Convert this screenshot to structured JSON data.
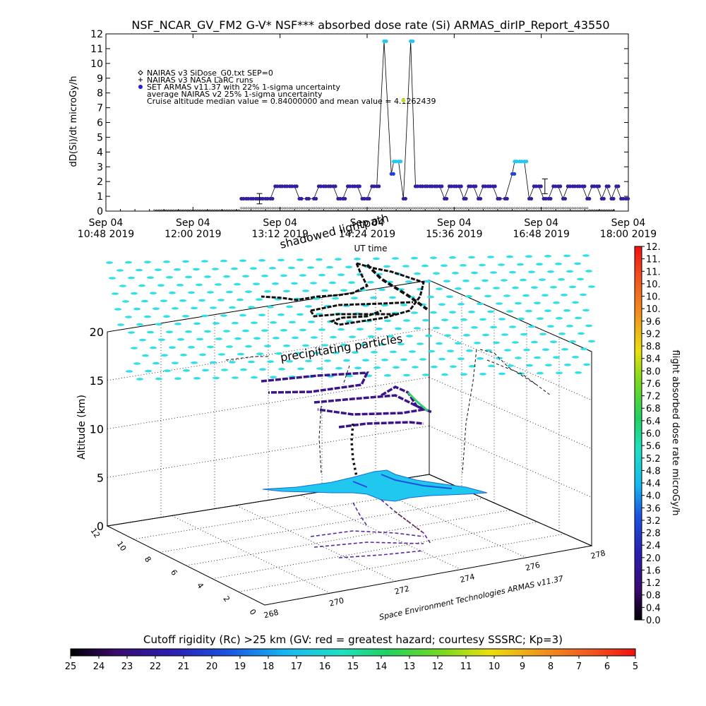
{
  "title": "NSF_NCAR_GV_FM2 G-V* NSF*** absorbed dose rate (Si) ARMAS_dirIP_Report_43550",
  "legend": {
    "items": [
      {
        "marker": "diamond",
        "text": "NAIRAS v3 SiDose_G0.txt SEP=0"
      },
      {
        "marker": "plus",
        "text": "NAIRAS v3 NASA LaRC runs"
      },
      {
        "marker": "dot",
        "color": "#2020d0",
        "text": "SET ARMAS v11.37 with 22% 1-sigma uncertainty"
      },
      {
        "marker": "none",
        "text": "average NAIRAS v2 25% 1-sigma uncertainty"
      },
      {
        "marker": "none",
        "text": "Cruise altitude median value = 0.84000000 and mean value = 4.1262439"
      }
    ]
  },
  "chart_data": [
    {
      "type": "scatter",
      "ylabel": "dD(Si)/dt microGy/h",
      "xlabel": "UT time",
      "ylim": [
        0,
        12
      ],
      "yticks": [
        "0",
        "1",
        "2",
        "3",
        "4",
        "5",
        "6",
        "7",
        "8",
        "9",
        "10",
        "11",
        "12"
      ],
      "xtick_labels": [
        {
          "line1": "Sep 04",
          "line2": "10:48 2019"
        },
        {
          "line1": "Sep 04",
          "line2": "12:00 2019"
        },
        {
          "line1": "Sep 04",
          "line2": "13:12 2019"
        },
        {
          "line1": "Sep 04",
          "line2": "14:24 2019"
        },
        {
          "line1": "Sep 04",
          "line2": "15:36 2019"
        },
        {
          "line1": "Sep 04",
          "line2": "16:48 2019"
        },
        {
          "line1": "Sep 04",
          "line2": "18:00 2019"
        }
      ],
      "xlim_minutes_from_first_tick": [
        0,
        432
      ],
      "series": [
        {
          "name": "SET ARMAS v11.37 with 22% 1-sigma uncertainty",
          "color": "#3020a0",
          "points": [
            [
              112,
              0.84
            ],
            [
              116,
              0.84
            ],
            [
              120,
              0.84
            ],
            [
              124,
              0.84
            ],
            [
              128,
              0.84
            ],
            [
              132,
              0.84
            ],
            [
              136,
              0.84
            ],
            [
              140,
              1.68
            ],
            [
              144,
              1.68
            ],
            [
              148,
              1.68
            ],
            [
              152,
              1.68
            ],
            [
              156,
              1.68
            ],
            [
              160,
              0.84
            ],
            [
              166,
              0.84
            ],
            [
              172,
              0.84
            ],
            [
              176,
              1.68
            ],
            [
              180,
              1.68
            ],
            [
              184,
              1.68
            ],
            [
              188,
              1.68
            ],
            [
              192,
              0.84
            ],
            [
              196,
              0.84
            ],
            [
              200,
              1.68
            ],
            [
              204,
              1.68
            ],
            [
              208,
              1.68
            ],
            [
              212,
              0.84
            ],
            [
              216,
              0.84
            ],
            [
              220,
              1.68
            ],
            [
              224,
              1.68
            ],
            [
              230,
              11.5
            ],
            [
              236,
              2.52
            ],
            [
              238,
              3.36
            ],
            [
              242,
              3.36
            ],
            [
              246,
              0.84
            ],
            [
              252,
              11.5
            ],
            [
              256,
              1.68
            ],
            [
              260,
              1.68
            ],
            [
              264,
              1.68
            ],
            [
              268,
              1.68
            ],
            [
              272,
              1.68
            ],
            [
              276,
              1.68
            ],
            [
              280,
              0.84
            ],
            [
              284,
              1.68
            ],
            [
              288,
              1.68
            ],
            [
              292,
              1.68
            ],
            [
              296,
              0.84
            ],
            [
              300,
              1.68
            ],
            [
              304,
              1.68
            ],
            [
              308,
              0.84
            ],
            [
              312,
              1.68
            ],
            [
              316,
              1.68
            ],
            [
              320,
              1.68
            ],
            [
              324,
              0.84
            ],
            [
              330,
              0.84
            ],
            [
              336,
              2.52
            ],
            [
              338,
              3.36
            ],
            [
              342,
              3.36
            ],
            [
              346,
              3.36
            ],
            [
              350,
              0.84
            ],
            [
              354,
              1.68
            ],
            [
              358,
              1.68
            ],
            [
              362,
              0.84
            ],
            [
              366,
              0.84
            ],
            [
              370,
              1.68
            ],
            [
              374,
              1.68
            ],
            [
              378,
              0.84
            ],
            [
              382,
              1.68
            ],
            [
              386,
              1.68
            ],
            [
              390,
              1.68
            ],
            [
              394,
              1.68
            ],
            [
              398,
              0.84
            ],
            [
              402,
              1.68
            ],
            [
              406,
              1.68
            ],
            [
              410,
              0.84
            ],
            [
              414,
              1.68
            ],
            [
              418,
              0.84
            ],
            [
              422,
              1.68
            ],
            [
              426,
              0.84
            ],
            [
              430,
              0.84
            ]
          ]
        },
        {
          "name": "NAIRAS v3 SiDose_G0.txt SEP=0",
          "color": "#303030",
          "x_range": [
            40,
            420
          ],
          "level": 0.05
        }
      ]
    },
    {
      "type": "scatter",
      "zlabel": "Altitude (km)",
      "zlim": [
        0,
        20
      ],
      "zticks": [
        "0",
        "5",
        "10",
        "15",
        "20"
      ],
      "lat_ticks": [
        "0",
        "2",
        "4",
        "6",
        "8",
        "10",
        "12"
      ],
      "lon_ticks": [
        "268",
        "270",
        "272",
        "274",
        "276",
        "278"
      ],
      "annotations": [
        "shadowed lightpath",
        "precipitating particles"
      ],
      "credit": "Space Environment Technologies ARMAS v11.37"
    },
    {
      "type": "heatmap",
      "name": "colorbar-dose",
      "label": "flight absorbed dose rate microGy/h",
      "ticks": [
        "0.0",
        "0.4",
        "0.8",
        "1.2",
        "1.6",
        "2.0",
        "2.4",
        "2.8",
        "3.2",
        "3.6",
        "4.0",
        "4.4",
        "4.8",
        "5.2",
        "5.6",
        "6.0",
        "6.4",
        "6.8",
        "7.2",
        "7.6",
        "8.0",
        "8.4",
        "8.8",
        "9.2",
        "9.6",
        "10.",
        "10.",
        "10.",
        "11.",
        "11.",
        "12."
      ]
    },
    {
      "type": "heatmap",
      "name": "colorbar-cutoff",
      "label": "Cutoff rigidity (Rc) >25 km (GV: red = greatest hazard; courtesy SSSRC; Kp=3)",
      "ticks": [
        "25",
        "24",
        "23",
        "22",
        "21",
        "20",
        "19",
        "18",
        "17",
        "16",
        "15",
        "14",
        "13",
        "12",
        "11",
        "10",
        "9",
        "8",
        "7",
        "6",
        "5"
      ]
    }
  ]
}
